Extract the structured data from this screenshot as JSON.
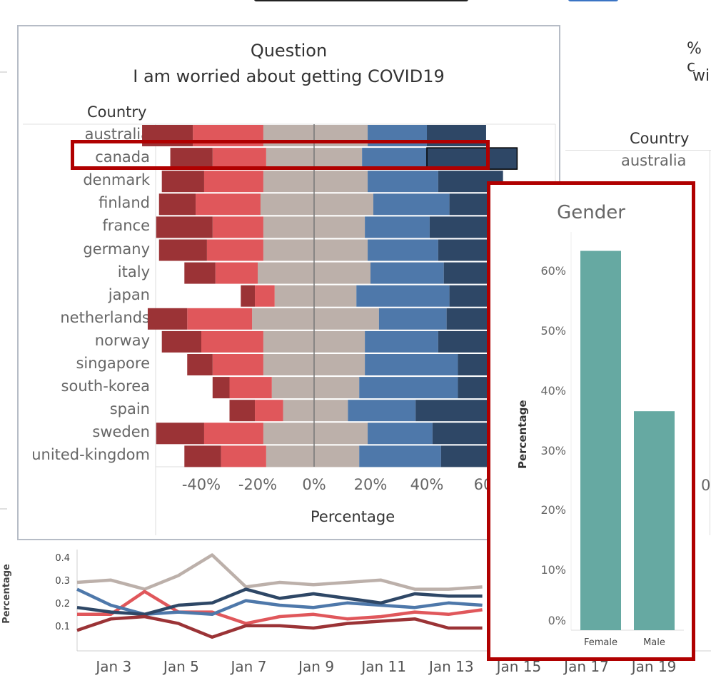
{
  "top_cut_text": "",
  "main_chart": {
    "title_line1": "Question",
    "title_line2": "I am worried about getting COVID19",
    "country_header": "Country",
    "x_axis_title": "Percentage",
    "x_ticks": [
      "-40%",
      "-20%",
      "0%",
      "20%",
      "40%",
      "60"
    ],
    "highlighted_country": "canada",
    "segment_colors": [
      "#9b3336",
      "#e0575b",
      "#bcb0aa",
      "#bcb0aa",
      "#4e78aa",
      "#2e4766"
    ]
  },
  "right_partial": {
    "title_line1": "% c",
    "title_line2": "wi",
    "country_header": "Country",
    "first_country": "australia",
    "tick_fragment": "0"
  },
  "popup": {
    "title": "Gender",
    "y_axis_title": "Percentage",
    "y_ticks": [
      "0%",
      "10%",
      "20%",
      "30%",
      "40%",
      "50%",
      "60%"
    ],
    "bar_color": "#66a9a2"
  },
  "bottom_chart": {
    "y_axis_title": "Percentage",
    "y_ticks": [
      "0.1",
      "0.2",
      "0.3",
      "0.4"
    ],
    "x_ticks": [
      "Jan 3",
      "Jan 5",
      "Jan 7",
      "Jan 9",
      "Jan 11",
      "Jan 13",
      "Jan 15",
      "Jan 17",
      "Jan 19"
    ],
    "line_colors": [
      "#bcb0aa",
      "#e0575b",
      "#4e78aa",
      "#2e4766",
      "#9b3336"
    ]
  },
  "chart_data": [
    {
      "type": "bar",
      "orientation": "horizontal-diverging",
      "title": "Question I am worried about getting COVID19",
      "xlabel": "Percentage",
      "ylabel": "Country",
      "xlim": [
        -55,
        65
      ],
      "categories": [
        "australia",
        "canada",
        "denmark",
        "finland",
        "france",
        "germany",
        "italy",
        "japan",
        "netherlands",
        "norway",
        "singapore",
        "south-korea",
        "spain",
        "sweden",
        "united-kingdom"
      ],
      "series": [
        {
          "values": [
            18,
            15,
            15,
            13,
            20,
            17,
            11,
            5,
            14,
            14,
            9,
            6,
            9,
            17,
            13
          ]
        },
        {
          "values": [
            25,
            19,
            21,
            23,
            18,
            20,
            15,
            7,
            23,
            22,
            18,
            15,
            10,
            21,
            16
          ]
        },
        {
          "values": [
            18,
            17,
            18,
            19,
            18,
            18,
            20,
            14,
            22,
            18,
            18,
            15,
            11,
            18,
            17
          ]
        },
        {
          "values": [
            19,
            17,
            19,
            21,
            18,
            19,
            20,
            15,
            23,
            18,
            18,
            16,
            12,
            19,
            16
          ]
        },
        {
          "values": [
            21,
            23,
            25,
            27,
            23,
            25,
            26,
            33,
            24,
            26,
            33,
            35,
            24,
            23,
            29
          ]
        },
        {
          "values": [
            21,
            32,
            23,
            18,
            27,
            23,
            30,
            28,
            16,
            25,
            24,
            24,
            38,
            24,
            28
          ]
        }
      ]
    },
    {
      "type": "bar",
      "title": "Gender",
      "ylabel": "Percentage",
      "categories": [
        "Female",
        "Male"
      ],
      "values": [
        63.4,
        36.6
      ],
      "ylim": [
        0,
        66
      ]
    },
    {
      "type": "line",
      "ylabel": "Percentage",
      "ylim": [
        0.05,
        0.45
      ],
      "x": [
        "Jan 1",
        "Jan 2",
        "Jan 3",
        "Jan 4",
        "Jan 5",
        "Jan 6",
        "Jan 7",
        "Jan 8",
        "Jan 9",
        "Jan 10",
        "Jan 11",
        "Jan 12",
        "Jan 13"
      ],
      "series": [
        {
          "values": [
            0.3,
            0.31,
            0.27,
            0.33,
            0.42,
            0.28,
            0.3,
            0.29,
            0.3,
            0.31,
            0.27,
            0.27,
            0.28
          ]
        },
        {
          "values": [
            0.16,
            0.16,
            0.26,
            0.17,
            0.17,
            0.12,
            0.15,
            0.16,
            0.14,
            0.15,
            0.17,
            0.16,
            0.18
          ]
        },
        {
          "values": [
            0.27,
            0.2,
            0.16,
            0.17,
            0.16,
            0.22,
            0.2,
            0.19,
            0.21,
            0.2,
            0.19,
            0.21,
            0.2
          ]
        },
        {
          "values": [
            0.19,
            0.17,
            0.16,
            0.2,
            0.21,
            0.27,
            0.23,
            0.25,
            0.23,
            0.21,
            0.25,
            0.24,
            0.24
          ]
        },
        {
          "values": [
            0.09,
            0.14,
            0.15,
            0.12,
            0.06,
            0.11,
            0.11,
            0.1,
            0.12,
            0.13,
            0.14,
            0.1,
            0.1
          ]
        }
      ]
    }
  ]
}
